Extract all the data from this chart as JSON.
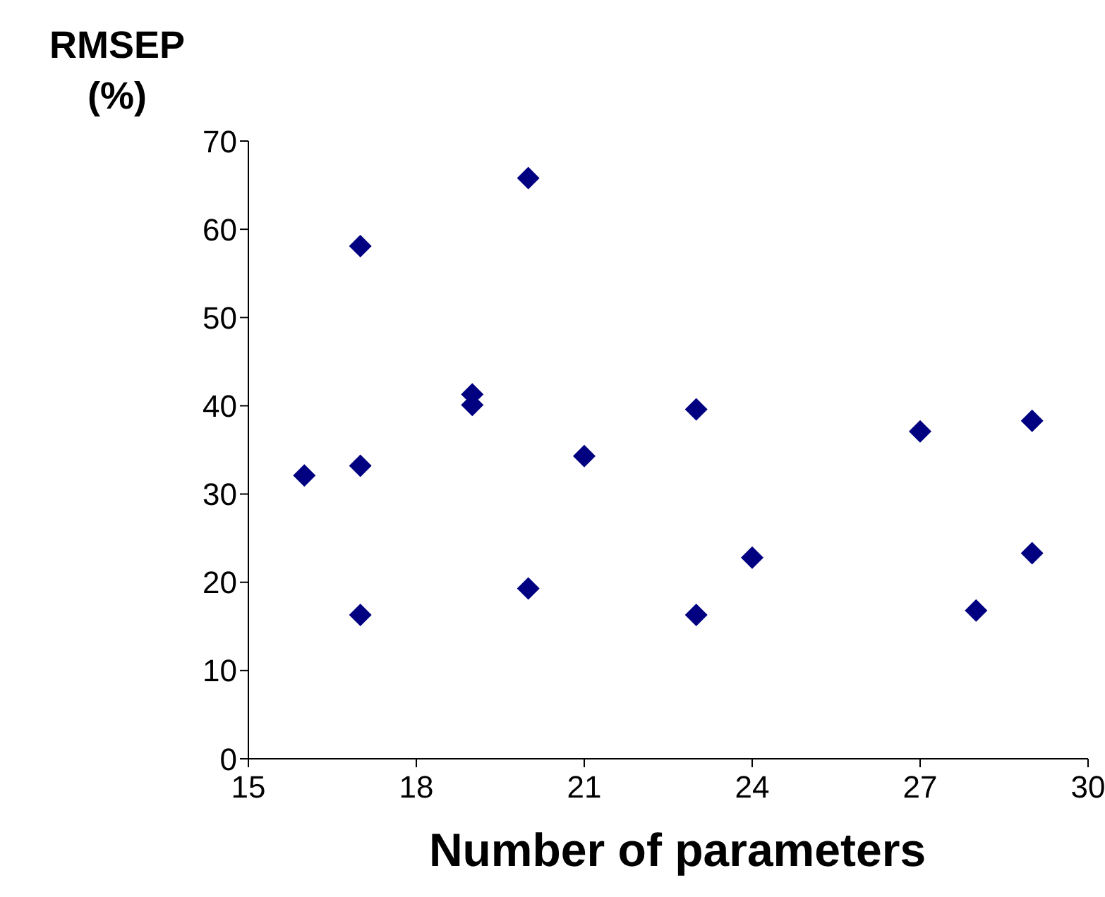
{
  "chart_data": {
    "type": "scatter",
    "xlabel": "Number of parameters",
    "ylabel": "RMSEP (%)",
    "x": [
      16,
      17,
      17,
      17,
      19,
      19,
      20,
      20,
      21,
      23,
      23,
      24,
      27,
      28,
      29,
      29
    ],
    "values": [
      32.1,
      58.1,
      33.2,
      16.3,
      41.3,
      40.1,
      65.8,
      19.3,
      34.3,
      39.6,
      16.3,
      22.8,
      37.1,
      16.8,
      38.3,
      23.3
    ],
    "color": "#000080",
    "marker": "diamond",
    "grid": false,
    "legend": false,
    "xlim": [
      15,
      30
    ],
    "xticks": [
      15,
      18,
      21,
      24,
      27,
      30
    ],
    "ylim": [
      0,
      70
    ],
    "yticks": [
      0,
      10,
      20,
      30,
      40,
      50,
      60,
      70
    ]
  }
}
